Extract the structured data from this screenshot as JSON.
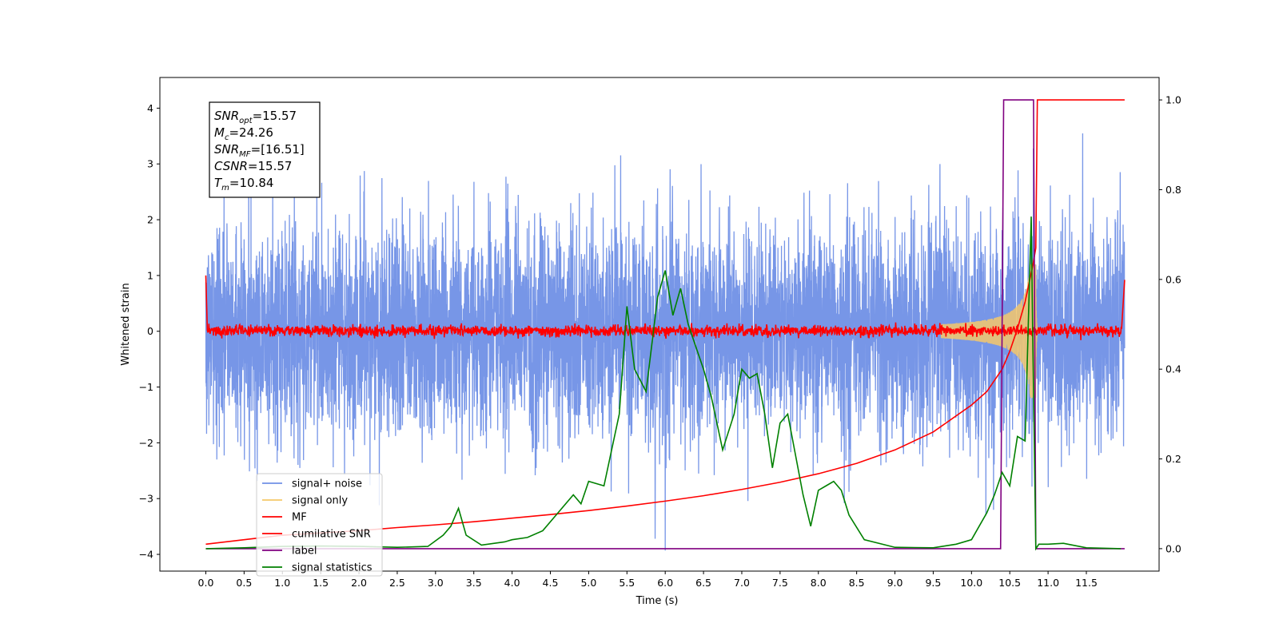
{
  "chart_data": {
    "type": "line",
    "title": "",
    "xlabel": "Time (s)",
    "ylabel": "Whitened strain",
    "y2label": "",
    "xlim": [
      -0.6,
      12.45
    ],
    "ylim": [
      -4.3,
      4.55
    ],
    "y2lim": [
      -0.05,
      1.05
    ],
    "xticks": [
      "0.0",
      "0.5",
      "1.0",
      "1.5",
      "2.0",
      "2.5",
      "3.0",
      "3.5",
      "4.0",
      "4.5",
      "5.0",
      "5.5",
      "6.0",
      "6.5",
      "7.0",
      "7.5",
      "8.0",
      "8.5",
      "9.0",
      "9.5",
      "10.0",
      "10.5",
      "11.0",
      "11.5"
    ],
    "yticks": [
      "4",
      "3",
      "2",
      "1",
      "0",
      "−1",
      "−2",
      "−3",
      "−4"
    ],
    "y2ticks": [
      "1.0",
      "0.8",
      "0.6",
      "0.4",
      "0.2",
      "0.0"
    ],
    "grid": false,
    "legend_position": "lower-left",
    "annotation": {
      "lines": [
        {
          "base": "SNR",
          "sub": "opt",
          "value": "=15.57"
        },
        {
          "base": "M",
          "sub": "c",
          "value": "=24.26"
        },
        {
          "base": "SNR",
          "sub": "MF",
          "value": "=[16.51]"
        },
        {
          "base": "CSNR",
          "sub": "",
          "value": "=15.57"
        },
        {
          "base": "T",
          "sub": "m",
          "value": "=10.84"
        }
      ]
    },
    "series": [
      {
        "name": "signal+ noise",
        "color": "#7090e6",
        "axis": "left",
        "kind": "noise",
        "amplitude_range": [
          -4.0,
          4.0
        ]
      },
      {
        "name": "signal only",
        "color": "#f5c86a",
        "axis": "left",
        "kind": "chirp",
        "merger_time": 10.84
      },
      {
        "name": "MF",
        "color": "#ff0000",
        "axis": "left",
        "kind": "mf"
      },
      {
        "name": "cumilative SNR",
        "color": "#ff0000",
        "axis": "right",
        "x": [
          0.0,
          0.5,
          1.0,
          1.5,
          2.0,
          2.5,
          3.0,
          3.5,
          4.0,
          4.5,
          5.0,
          5.5,
          6.0,
          6.5,
          7.0,
          7.5,
          8.0,
          8.5,
          9.0,
          9.5,
          10.0,
          10.2,
          10.4,
          10.5,
          10.6,
          10.7,
          10.8,
          10.84,
          10.86,
          12.0
        ],
        "y": [
          0.01,
          0.02,
          0.03,
          0.035,
          0.04,
          0.047,
          0.053,
          0.06,
          0.068,
          0.076,
          0.085,
          0.095,
          0.106,
          0.118,
          0.132,
          0.148,
          0.167,
          0.19,
          0.22,
          0.26,
          0.32,
          0.35,
          0.4,
          0.44,
          0.49,
          0.55,
          0.63,
          0.67,
          1.0,
          1.0
        ]
      },
      {
        "name": "label",
        "color": "#800080",
        "axis": "right",
        "x": [
          0.0,
          10.38,
          10.42,
          10.81,
          10.84,
          12.0
        ],
        "y": [
          0.0,
          0.0,
          1.0,
          1.0,
          0.0,
          0.0
        ]
      },
      {
        "name": "signal statistics",
        "color": "#008000",
        "axis": "right",
        "x": [
          0.0,
          0.5,
          1.0,
          1.5,
          2.0,
          2.5,
          2.9,
          3.1,
          3.2,
          3.3,
          3.4,
          3.6,
          3.9,
          4.0,
          4.2,
          4.4,
          4.6,
          4.8,
          4.9,
          5.0,
          5.2,
          5.4,
          5.5,
          5.6,
          5.75,
          5.9,
          6.0,
          6.1,
          6.2,
          6.3,
          6.5,
          6.6,
          6.75,
          6.9,
          7.0,
          7.1,
          7.2,
          7.3,
          7.4,
          7.5,
          7.6,
          7.8,
          7.9,
          8.0,
          8.1,
          8.2,
          8.3,
          8.4,
          8.6,
          9.0,
          9.5,
          9.8,
          10.0,
          10.1,
          10.2,
          10.3,
          10.4,
          10.5,
          10.6,
          10.7,
          10.78,
          10.8,
          10.84,
          10.88,
          11.0,
          11.2,
          11.5,
          11.95
        ],
        "y": [
          0.0,
          0.002,
          0.005,
          0.006,
          0.005,
          0.003,
          0.005,
          0.03,
          0.05,
          0.09,
          0.03,
          0.008,
          0.015,
          0.02,
          0.025,
          0.04,
          0.08,
          0.12,
          0.1,
          0.15,
          0.14,
          0.3,
          0.54,
          0.4,
          0.35,
          0.56,
          0.62,
          0.52,
          0.58,
          0.5,
          0.4,
          0.34,
          0.22,
          0.3,
          0.4,
          0.38,
          0.39,
          0.3,
          0.18,
          0.28,
          0.3,
          0.12,
          0.05,
          0.13,
          0.14,
          0.15,
          0.13,
          0.075,
          0.02,
          0.003,
          0.002,
          0.01,
          0.02,
          0.05,
          0.08,
          0.12,
          0.17,
          0.14,
          0.25,
          0.24,
          0.74,
          0.47,
          0.0,
          0.01,
          0.01,
          0.012,
          0.002,
          0.0
        ]
      }
    ]
  }
}
